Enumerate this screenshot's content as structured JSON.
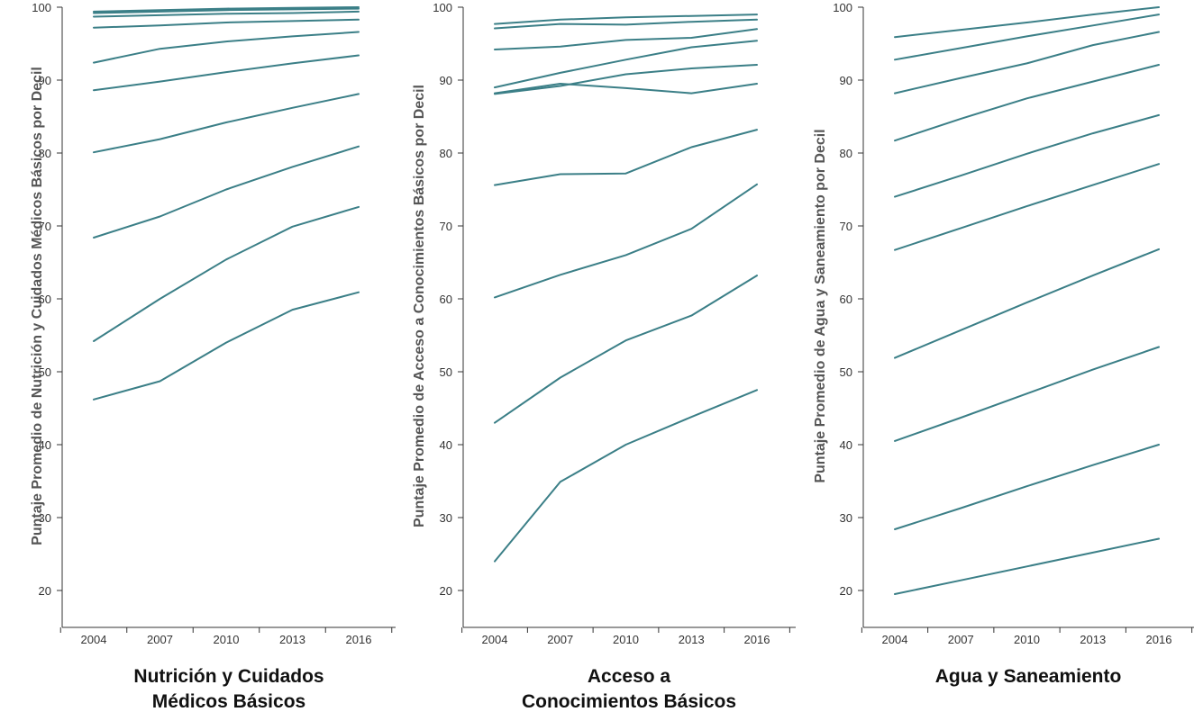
{
  "chart_data": [
    {
      "type": "line",
      "title": "Nutrición y Cuidados Médicos Básicos",
      "title_lines": [
        "Nutrición y Cuidados",
        "Médicos Básicos"
      ],
      "ylabel": "Puntaje Promedio de Nutrición y Cuidados Médicos Básicos por Decil",
      "xlabel": "",
      "x": [
        "2004",
        "2007",
        "2010",
        "2013",
        "2016"
      ],
      "ylim": [
        15,
        100
      ],
      "yticks": [
        "20",
        "30",
        "40",
        "50",
        "60",
        "70",
        "80",
        "90",
        "100"
      ],
      "grid": false,
      "series": [
        {
          "values": [
            46.2,
            48.7,
            54.0,
            58.5,
            60.9
          ]
        },
        {
          "values": [
            54.2,
            60.0,
            65.4,
            69.9,
            72.6
          ]
        },
        {
          "values": [
            68.4,
            71.3,
            75.0,
            78.1,
            80.9
          ]
        },
        {
          "values": [
            80.1,
            81.9,
            84.2,
            86.2,
            88.1
          ]
        },
        {
          "values": [
            88.6,
            89.8,
            91.1,
            92.3,
            93.4
          ]
        },
        {
          "values": [
            92.4,
            94.3,
            95.3,
            96.0,
            96.6
          ]
        },
        {
          "values": [
            97.2,
            97.5,
            97.9,
            98.1,
            98.3
          ]
        },
        {
          "values": [
            98.7,
            98.9,
            99.1,
            99.2,
            99.4
          ]
        },
        {
          "values": [
            99.2,
            99.4,
            99.6,
            99.7,
            99.8
          ]
        },
        {
          "values": [
            99.4,
            99.6,
            99.8,
            99.9,
            100.0
          ]
        }
      ]
    },
    {
      "type": "line",
      "title": "Acceso a Conocimientos Básicos",
      "title_lines": [
        "Acceso a",
        "Conocimientos Básicos"
      ],
      "ylabel": "Puntaje Promedio de Acceso a Conocimientos Básicos por Decil",
      "xlabel": "",
      "x": [
        "2004",
        "2007",
        "2010",
        "2013",
        "2016"
      ],
      "ylim": [
        15,
        100
      ],
      "yticks": [
        "20",
        "30",
        "40",
        "50",
        "60",
        "70",
        "80",
        "90",
        "100"
      ],
      "grid": false,
      "series": [
        {
          "values": [
            24.0,
            34.9,
            40.0,
            43.8,
            47.5
          ]
        },
        {
          "values": [
            43.0,
            49.2,
            54.3,
            57.7,
            63.2
          ]
        },
        {
          "values": [
            60.2,
            63.3,
            66.0,
            69.6,
            75.7
          ]
        },
        {
          "values": [
            75.6,
            77.1,
            77.2,
            80.8,
            83.2
          ]
        },
        {
          "values": [
            88.1,
            89.2,
            90.8,
            91.6,
            92.1
          ]
        },
        {
          "values": [
            88.2,
            89.5,
            88.9,
            88.2,
            89.5
          ]
        },
        {
          "values": [
            89.0,
            91.0,
            92.8,
            94.5,
            95.4
          ]
        },
        {
          "values": [
            94.2,
            94.6,
            95.5,
            95.8,
            97.0
          ]
        },
        {
          "values": [
            97.1,
            97.7,
            97.6,
            98.0,
            98.3
          ]
        },
        {
          "values": [
            97.7,
            98.3,
            98.6,
            98.8,
            99.0
          ]
        }
      ]
    },
    {
      "type": "line",
      "title": "Agua y Saneamiento",
      "title_lines": [
        "Agua y Saneamiento"
      ],
      "ylabel": "Puntaje Promedio de Agua y Saneamiento por Decil",
      "xlabel": "",
      "x": [
        "2004",
        "2007",
        "2010",
        "2013",
        "2016"
      ],
      "ylim": [
        15,
        100
      ],
      "yticks": [
        "20",
        "30",
        "40",
        "50",
        "60",
        "70",
        "80",
        "90",
        "100"
      ],
      "grid": false,
      "series": [
        {
          "values": [
            19.5,
            21.4,
            23.3,
            25.2,
            27.1
          ]
        },
        {
          "values": [
            28.4,
            31.3,
            34.3,
            37.2,
            40.0
          ]
        },
        {
          "values": [
            40.5,
            43.7,
            47.0,
            50.3,
            53.4
          ]
        },
        {
          "values": [
            51.9,
            55.7,
            59.5,
            63.2,
            66.8
          ]
        },
        {
          "values": [
            66.7,
            69.7,
            72.7,
            75.6,
            78.5
          ]
        },
        {
          "values": [
            74.0,
            76.9,
            79.9,
            82.7,
            85.2
          ]
        },
        {
          "values": [
            81.7,
            84.7,
            87.5,
            89.8,
            92.1
          ]
        },
        {
          "values": [
            88.2,
            90.3,
            92.3,
            94.8,
            96.6
          ]
        },
        {
          "values": [
            92.8,
            94.4,
            96.0,
            97.5,
            99.0
          ]
        },
        {
          "values": [
            95.9,
            96.9,
            97.9,
            99.0,
            100.0
          ]
        }
      ]
    }
  ],
  "colors": {
    "line": "#3b7f87",
    "axis": "#333333",
    "text": "#333333",
    "title": "#111111",
    "ylabel": "#555555"
  }
}
